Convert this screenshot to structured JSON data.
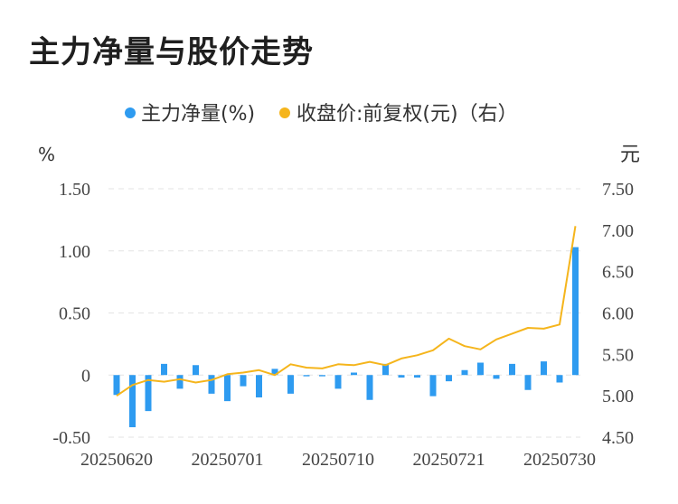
{
  "title": "主力净量与股价走势",
  "chart_data": {
    "type": "bar",
    "legend": [
      {
        "label": "主力净量(%)",
        "color": "#2e9bf0"
      },
      {
        "label": "收盘价:前复权(元)（右）",
        "color": "#f5b51c"
      }
    ],
    "left_axis": {
      "unit": "%",
      "ticks": [
        "1.50",
        "1.00",
        "0.50",
        "0",
        "-0.50"
      ],
      "ylim": [
        -0.5,
        1.5
      ]
    },
    "right_axis": {
      "unit": "元",
      "ticks": [
        "7.50",
        "7.00",
        "6.50",
        "6.00",
        "5.50",
        "5.00",
        "4.50"
      ],
      "ylim": [
        4.5,
        7.5
      ]
    },
    "x_tick_labels": [
      "20250620",
      "20250701",
      "20250710",
      "20250721",
      "20250730"
    ],
    "x_tick_positions": [
      0,
      7,
      14,
      21,
      28
    ],
    "grid": true,
    "series": [
      {
        "name": "主力净量(%)",
        "type": "bar",
        "axis": "left",
        "values": [
          -0.16,
          -0.42,
          -0.29,
          0.09,
          -0.11,
          0.08,
          -0.15,
          -0.21,
          -0.09,
          -0.18,
          0.05,
          -0.15,
          -0.01,
          -0.01,
          -0.11,
          0.02,
          -0.2,
          0.09,
          -0.02,
          -0.02,
          -0.17,
          -0.05,
          0.04,
          0.1,
          -0.03,
          0.09,
          -0.12,
          0.11,
          -0.06,
          1.03
        ]
      },
      {
        "name": "收盘价:前复权(元)（右）",
        "type": "line",
        "axis": "right",
        "values": [
          5.0,
          5.13,
          5.19,
          5.17,
          5.2,
          5.16,
          5.19,
          5.26,
          5.28,
          5.31,
          5.25,
          5.38,
          5.34,
          5.33,
          5.38,
          5.37,
          5.41,
          5.37,
          5.45,
          5.49,
          5.55,
          5.69,
          5.6,
          5.56,
          5.68,
          5.75,
          5.82,
          5.81,
          5.86,
          7.05
        ]
      }
    ]
  }
}
